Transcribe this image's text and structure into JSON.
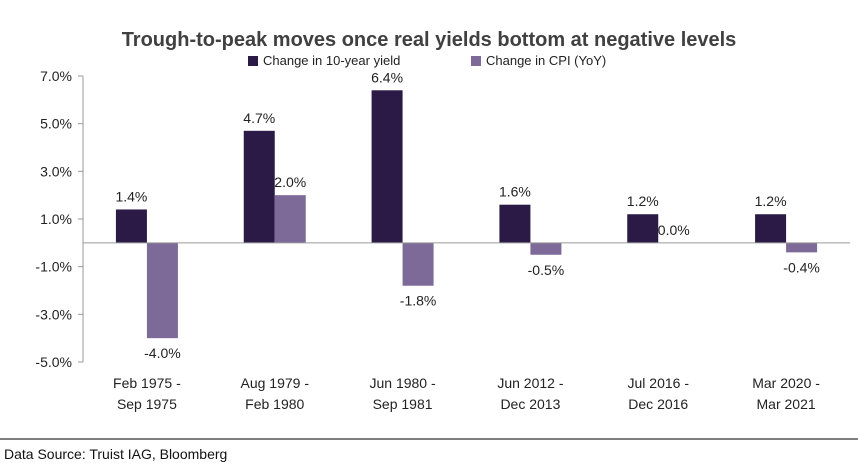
{
  "chart_data": {
    "type": "bar",
    "title": "Trough-to-peak moves once real yields bottom at negative levels",
    "xlabel": "",
    "ylabel": "",
    "ylim": [
      -5.0,
      7.0
    ],
    "yticks": [
      "7.0%",
      "5.0%",
      "3.0%",
      "1.0%",
      "-1.0%",
      "-3.0%",
      "-5.0%"
    ],
    "ytick_values": [
      7.0,
      5.0,
      3.0,
      1.0,
      -1.0,
      -3.0,
      -5.0
    ],
    "grid": false,
    "legend_position": "top",
    "categories": [
      [
        "Feb 1975 -",
        "Sep 1975"
      ],
      [
        "Aug 1979 -",
        "Feb 1980"
      ],
      [
        "Jun 1980 -",
        "Sep 1981"
      ],
      [
        "Jun 2012 -",
        "Dec 2013"
      ],
      [
        "Jul 2016 -",
        "Dec 2016"
      ],
      [
        "Mar 2020 -",
        "Mar 2021"
      ]
    ],
    "series": [
      {
        "name": "Change in 10-year yield",
        "color": "#2a1a45",
        "values": [
          1.4,
          4.7,
          6.4,
          1.6,
          1.2,
          1.2
        ],
        "labels": [
          "1.4%",
          "4.7%",
          "6.4%",
          "1.6%",
          "1.2%",
          "1.2%"
        ]
      },
      {
        "name": "Change in CPI (YoY)",
        "color": "#7d6a99",
        "values": [
          -4.0,
          2.0,
          -1.8,
          -0.5,
          0.0,
          -0.4
        ],
        "labels": [
          "-4.0%",
          "2.0%",
          "-1.8%",
          "-0.5%",
          "0.0%",
          "-0.4%"
        ]
      }
    ]
  },
  "footer": {
    "source": "Data Source: Truist IAG, Bloomberg"
  },
  "colors": {
    "axis": "#9a9a9a",
    "separator": "#555555"
  }
}
